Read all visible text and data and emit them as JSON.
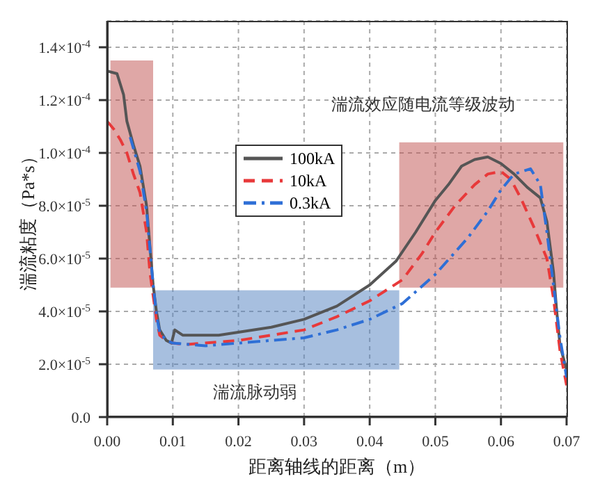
{
  "chart_data": {
    "type": "line",
    "xlabel": "距离轴线的距离（m）",
    "ylabel": "湍流粘度（Pa*s）",
    "xlim": [
      0,
      0.07
    ],
    "ylim": [
      0,
      0.00015
    ],
    "xticks": [
      {
        "value": 0,
        "label": "0.00"
      },
      {
        "value": 0.01,
        "label": "0.01"
      },
      {
        "value": 0.02,
        "label": "0.02"
      },
      {
        "value": 0.03,
        "label": "0.03"
      },
      {
        "value": 0.04,
        "label": "0.04"
      },
      {
        "value": 0.05,
        "label": "0.05"
      },
      {
        "value": 0.06,
        "label": "0.06"
      },
      {
        "value": 0.07,
        "label": "0.07"
      }
    ],
    "yticks": [
      {
        "value": 0,
        "label": "0.0"
      },
      {
        "value": 2e-05,
        "label": "2.0×10$^{-5}$"
      },
      {
        "value": 4e-05,
        "label": "4.0×10$^{-5}$"
      },
      {
        "value": 6e-05,
        "label": "6.0×10$^{-5}$"
      },
      {
        "value": 8e-05,
        "label": "8.0×10$^{-5}$"
      },
      {
        "value": 0.0001,
        "label": "1.0×10$^{-4}$"
      },
      {
        "value": 0.00012,
        "label": "1.2×10$^{-4}$"
      },
      {
        "value": 0.00014,
        "label": "1.4×10$^{-4}$"
      }
    ],
    "grid": true,
    "legend": "top left",
    "marker": "none",
    "series": [
      {
        "name": "100kA",
        "color": "#555555",
        "line_style": "solid",
        "x": [
          0,
          0.0015,
          0.0025,
          0.003,
          0.004,
          0.005,
          0.006,
          0.0065,
          0.007,
          0.0075,
          0.008,
          0.009,
          0.0098,
          0.0103,
          0.0115,
          0.017,
          0.025,
          0.03,
          0.035,
          0.04,
          0.044,
          0.047,
          0.05,
          0.052,
          0.054,
          0.056,
          0.058,
          0.06,
          0.062,
          0.064,
          0.066,
          0.067,
          0.068,
          0.0685,
          0.069,
          0.07
        ],
        "values": [
          0.000131,
          0.00013,
          0.000122,
          0.000112,
          0.000103,
          9.5e-05,
          8e-05,
          6.5e-05,
          5e-05,
          4e-05,
          3.3e-05,
          2.9e-05,
          2.8e-05,
          3.3e-05,
          3.1e-05,
          3.1e-05,
          3.4e-05,
          3.7e-05,
          4.2e-05,
          5e-05,
          5.9e-05,
          7e-05,
          8.2e-05,
          8.8e-05,
          9.5e-05,
          9.75e-05,
          9.85e-05,
          9.6e-05,
          9.2e-05,
          8.7e-05,
          8.3e-05,
          7.4e-05,
          5.5e-05,
          4e-05,
          2.7e-05,
          1.8e-05
        ]
      },
      {
        "name": "10kA",
        "color": "#e8393a",
        "line_style": "dashed",
        "x": [
          0,
          0.001,
          0.002,
          0.003,
          0.004,
          0.005,
          0.006,
          0.0065,
          0.007,
          0.0075,
          0.008,
          0.009,
          0.01,
          0.012,
          0.02,
          0.025,
          0.03,
          0.035,
          0.04,
          0.045,
          0.048,
          0.05,
          0.053,
          0.056,
          0.058,
          0.06,
          0.0615,
          0.063,
          0.065,
          0.067,
          0.068,
          0.069,
          0.07
        ],
        "values": [
          0.000112,
          0.000109,
          0.000105,
          0.0001,
          9.2e-05,
          8.5e-05,
          7e-05,
          5.5e-05,
          4.6e-05,
          3.7e-05,
          3.1e-05,
          2.9e-05,
          2.8e-05,
          2.75e-05,
          2.9e-05,
          3.1e-05,
          3.3e-05,
          3.8e-05,
          4.4e-05,
          5.2e-05,
          6.2e-05,
          7e-05,
          8e-05,
          8.8e-05,
          9.2e-05,
          9.3e-05,
          9e-05,
          8.3e-05,
          7.2e-05,
          6e-05,
          4.5e-05,
          2.5e-05,
          1.2e-05
        ]
      },
      {
        "name": "0.3kA",
        "color": "#2e6fd6",
        "line_style": "dashdot",
        "x": [
          0.0035,
          0.005,
          0.006,
          0.007,
          0.0075,
          0.008,
          0.009,
          0.01,
          0.015,
          0.02,
          0.025,
          0.03,
          0.035,
          0.04,
          0.045,
          0.05,
          0.055,
          0.058,
          0.06,
          0.062,
          0.0645,
          0.066,
          0.067,
          0.068,
          0.069,
          0.07
        ],
        "values": [
          0.000106,
          9.3e-05,
          7.8e-05,
          5e-05,
          3.9e-05,
          3.2e-05,
          2.9e-05,
          2.8e-05,
          2.7e-05,
          2.8e-05,
          2.9e-05,
          3e-05,
          3.3e-05,
          3.7e-05,
          4.3e-05,
          5.4e-05,
          6.8e-05,
          7.8e-05,
          8.6e-05,
          9.2e-05,
          9.4e-05,
          8.8e-05,
          7e-05,
          5e-05,
          3e-05,
          1.5e-05
        ]
      }
    ],
    "annotations": [
      "湍流脉动弱",
      "湍流效应随电流等级波动"
    ]
  }
}
